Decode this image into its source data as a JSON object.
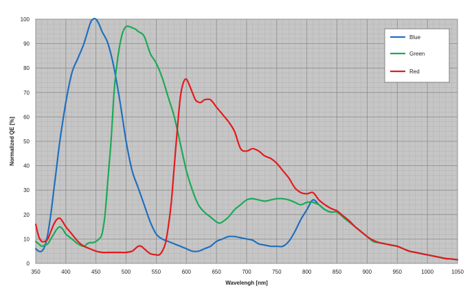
{
  "chart_data": {
    "type": "line",
    "xlabel": "Wavelengh [nm]",
    "ylabel": "Normalized QE [%]",
    "xlim": [
      350,
      1050
    ],
    "ylim": [
      0,
      100
    ],
    "x_ticks": [
      350,
      400,
      450,
      500,
      550,
      600,
      650,
      700,
      750,
      800,
      850,
      900,
      950,
      1000,
      1050
    ],
    "y_ticks": [
      0,
      10,
      20,
      30,
      40,
      50,
      60,
      70,
      80,
      90,
      100
    ],
    "grid": true,
    "legend_position": "top-right",
    "series": [
      {
        "name": "Blue",
        "color": "#1f6fc0",
        "points": [
          [
            350,
            6
          ],
          [
            355,
            5
          ],
          [
            360,
            5
          ],
          [
            365,
            7
          ],
          [
            370,
            12
          ],
          [
            375,
            20
          ],
          [
            380,
            30
          ],
          [
            385,
            40
          ],
          [
            390,
            50
          ],
          [
            400,
            66
          ],
          [
            410,
            78
          ],
          [
            420,
            84
          ],
          [
            430,
            90
          ],
          [
            440,
            98
          ],
          [
            445,
            100
          ],
          [
            450,
            100
          ],
          [
            455,
            98
          ],
          [
            460,
            95
          ],
          [
            470,
            90
          ],
          [
            480,
            80
          ],
          [
            490,
            66
          ],
          [
            500,
            50
          ],
          [
            510,
            38
          ],
          [
            520,
            31
          ],
          [
            530,
            24
          ],
          [
            540,
            17
          ],
          [
            550,
            12
          ],
          [
            560,
            10
          ],
          [
            570,
            9
          ],
          [
            580,
            8
          ],
          [
            590,
            7
          ],
          [
            600,
            6
          ],
          [
            610,
            5
          ],
          [
            620,
            5
          ],
          [
            630,
            6
          ],
          [
            640,
            7
          ],
          [
            650,
            9
          ],
          [
            660,
            10
          ],
          [
            670,
            11
          ],
          [
            680,
            11
          ],
          [
            690,
            10.5
          ],
          [
            700,
            10
          ],
          [
            710,
            9.5
          ],
          [
            720,
            8
          ],
          [
            730,
            7.5
          ],
          [
            740,
            7
          ],
          [
            750,
            7
          ],
          [
            760,
            7
          ],
          [
            770,
            9
          ],
          [
            780,
            13
          ],
          [
            790,
            18
          ],
          [
            800,
            22
          ],
          [
            810,
            26
          ],
          [
            820,
            24
          ],
          [
            830,
            22
          ],
          [
            840,
            21
          ],
          [
            850,
            21
          ],
          [
            860,
            19
          ],
          [
            870,
            17
          ],
          [
            880,
            15
          ],
          [
            890,
            13
          ],
          [
            900,
            11
          ],
          [
            910,
            9
          ],
          [
            920,
            8.5
          ],
          [
            930,
            8
          ],
          [
            940,
            7.5
          ],
          [
            950,
            7
          ],
          [
            960,
            6
          ],
          [
            970,
            5
          ],
          [
            980,
            4.5
          ],
          [
            990,
            4
          ],
          [
            1000,
            3.5
          ],
          [
            1010,
            3
          ],
          [
            1020,
            2.5
          ],
          [
            1030,
            2
          ],
          [
            1040,
            1.8
          ],
          [
            1050,
            1.5
          ]
        ]
      },
      {
        "name": "Green",
        "color": "#1aaa55",
        "points": [
          [
            350,
            9
          ],
          [
            355,
            8
          ],
          [
            360,
            7
          ],
          [
            365,
            7.5
          ],
          [
            370,
            8
          ],
          [
            375,
            10
          ],
          [
            380,
            12
          ],
          [
            385,
            14
          ],
          [
            390,
            15
          ],
          [
            395,
            14
          ],
          [
            400,
            12
          ],
          [
            410,
            10
          ],
          [
            420,
            8
          ],
          [
            430,
            7
          ],
          [
            435,
            8
          ],
          [
            440,
            8.5
          ],
          [
            445,
            8.5
          ],
          [
            450,
            9
          ],
          [
            455,
            10
          ],
          [
            460,
            12
          ],
          [
            465,
            20
          ],
          [
            470,
            35
          ],
          [
            475,
            50
          ],
          [
            480,
            70
          ],
          [
            485,
            82
          ],
          [
            490,
            90
          ],
          [
            495,
            95
          ],
          [
            500,
            97
          ],
          [
            505,
            97
          ],
          [
            510,
            96.5
          ],
          [
            515,
            96
          ],
          [
            520,
            95
          ],
          [
            530,
            93
          ],
          [
            540,
            86
          ],
          [
            550,
            82
          ],
          [
            560,
            76
          ],
          [
            570,
            68
          ],
          [
            580,
            60
          ],
          [
            590,
            49
          ],
          [
            600,
            38
          ],
          [
            610,
            30
          ],
          [
            620,
            24
          ],
          [
            630,
            21
          ],
          [
            640,
            19
          ],
          [
            650,
            17
          ],
          [
            655,
            16.5
          ],
          [
            660,
            17
          ],
          [
            670,
            19
          ],
          [
            680,
            22
          ],
          [
            690,
            24
          ],
          [
            700,
            26
          ],
          [
            710,
            26.5
          ],
          [
            720,
            26
          ],
          [
            730,
            25.5
          ],
          [
            740,
            26
          ],
          [
            750,
            26.5
          ],
          [
            760,
            26.5
          ],
          [
            770,
            26
          ],
          [
            780,
            25
          ],
          [
            790,
            24
          ],
          [
            800,
            25
          ],
          [
            810,
            25
          ],
          [
            820,
            24
          ],
          [
            830,
            22
          ],
          [
            840,
            21
          ],
          [
            850,
            21
          ],
          [
            860,
            19
          ],
          [
            870,
            17
          ],
          [
            880,
            15
          ],
          [
            890,
            13
          ],
          [
            900,
            11
          ],
          [
            910,
            9
          ],
          [
            920,
            8.5
          ],
          [
            930,
            8
          ],
          [
            940,
            7.5
          ],
          [
            950,
            7
          ],
          [
            960,
            6
          ],
          [
            970,
            5
          ],
          [
            980,
            4.5
          ],
          [
            990,
            4
          ],
          [
            1000,
            3.5
          ],
          [
            1010,
            3
          ],
          [
            1020,
            2.5
          ],
          [
            1030,
            2
          ],
          [
            1040,
            1.8
          ],
          [
            1050,
            1.5
          ]
        ]
      },
      {
        "name": "Red",
        "color": "#e31a1c",
        "points": [
          [
            350,
            16
          ],
          [
            355,
            11
          ],
          [
            360,
            9
          ],
          [
            365,
            9
          ],
          [
            370,
            10
          ],
          [
            375,
            13
          ],
          [
            380,
            16
          ],
          [
            385,
            18
          ],
          [
            390,
            18.5
          ],
          [
            395,
            17
          ],
          [
            400,
            15
          ],
          [
            410,
            12
          ],
          [
            420,
            9
          ],
          [
            430,
            7
          ],
          [
            440,
            6
          ],
          [
            450,
            5
          ],
          [
            460,
            4.5
          ],
          [
            470,
            4.5
          ],
          [
            480,
            4.5
          ],
          [
            490,
            4.5
          ],
          [
            500,
            4.5
          ],
          [
            510,
            5
          ],
          [
            515,
            6
          ],
          [
            520,
            7
          ],
          [
            525,
            7
          ],
          [
            530,
            6
          ],
          [
            540,
            4
          ],
          [
            550,
            3.5
          ],
          [
            555,
            3.5
          ],
          [
            560,
            5
          ],
          [
            565,
            8
          ],
          [
            570,
            15
          ],
          [
            575,
            25
          ],
          [
            580,
            40
          ],
          [
            585,
            55
          ],
          [
            590,
            68
          ],
          [
            595,
            74
          ],
          [
            600,
            75.5
          ],
          [
            605,
            73
          ],
          [
            610,
            70
          ],
          [
            615,
            67
          ],
          [
            620,
            66
          ],
          [
            625,
            66
          ],
          [
            630,
            67
          ],
          [
            640,
            67
          ],
          [
            650,
            64
          ],
          [
            660,
            61
          ],
          [
            670,
            58
          ],
          [
            680,
            54
          ],
          [
            690,
            47
          ],
          [
            700,
            46
          ],
          [
            710,
            47
          ],
          [
            720,
            46
          ],
          [
            730,
            44
          ],
          [
            740,
            43
          ],
          [
            750,
            41
          ],
          [
            760,
            38
          ],
          [
            770,
            35
          ],
          [
            780,
            31
          ],
          [
            790,
            29
          ],
          [
            800,
            28.5
          ],
          [
            810,
            29
          ],
          [
            820,
            26
          ],
          [
            830,
            24
          ],
          [
            840,
            22.5
          ],
          [
            850,
            21.5
          ],
          [
            860,
            19.5
          ],
          [
            870,
            17.5
          ],
          [
            880,
            15
          ],
          [
            890,
            13
          ],
          [
            900,
            11
          ],
          [
            910,
            9.5
          ],
          [
            920,
            8.5
          ],
          [
            930,
            8
          ],
          [
            940,
            7.5
          ],
          [
            950,
            7
          ],
          [
            960,
            6
          ],
          [
            970,
            5
          ],
          [
            980,
            4.5
          ],
          [
            990,
            4
          ],
          [
            1000,
            3.5
          ],
          [
            1010,
            3
          ],
          [
            1020,
            2.5
          ],
          [
            1030,
            2
          ],
          [
            1040,
            1.8
          ],
          [
            1050,
            1.5
          ]
        ]
      }
    ]
  }
}
